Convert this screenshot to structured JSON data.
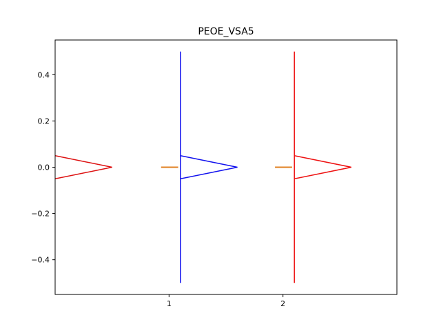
{
  "chart_data": {
    "type": "violin",
    "title": "PEOE_VSA5",
    "xlabel": "",
    "ylabel": "",
    "xlim": [
      0.0,
      3.0
    ],
    "ylim": [
      -0.55,
      0.55
    ],
    "x_ticks": [
      1,
      2
    ],
    "x_tick_labels": [
      "1",
      "2"
    ],
    "y_ticks": [
      -0.4,
      -0.2,
      0.0,
      0.2,
      0.4
    ],
    "y_tick_labels": [
      "−0.4",
      "−0.2",
      "0.0",
      "0.2",
      "0.4"
    ],
    "grid": false,
    "legend": "none",
    "violins": [
      {
        "position": 0.0,
        "color": "#dd1111",
        "body_x": [
          0.0,
          0.5,
          0.0
        ],
        "body_y": [
          0.05,
          0.0,
          -0.05
        ],
        "range": null
      },
      {
        "position": 1.1,
        "color": "#1111ee",
        "body_x": [
          1.1,
          1.6,
          1.1
        ],
        "body_y": [
          0.05,
          0.0,
          -0.05
        ],
        "range": [
          -0.5,
          0.5
        ]
      },
      {
        "position": 2.1,
        "color": "#ee1111",
        "body_x": [
          2.1,
          2.6,
          2.1
        ],
        "body_y": [
          0.05,
          0.0,
          -0.05
        ],
        "range": [
          -0.5,
          0.5
        ]
      }
    ],
    "median_markers": [
      {
        "x": [
          0.93,
          1.08
        ],
        "y": 0.0,
        "color": "#e08020"
      },
      {
        "x": [
          1.93,
          2.08
        ],
        "y": 0.0,
        "color": "#e08020"
      }
    ]
  }
}
